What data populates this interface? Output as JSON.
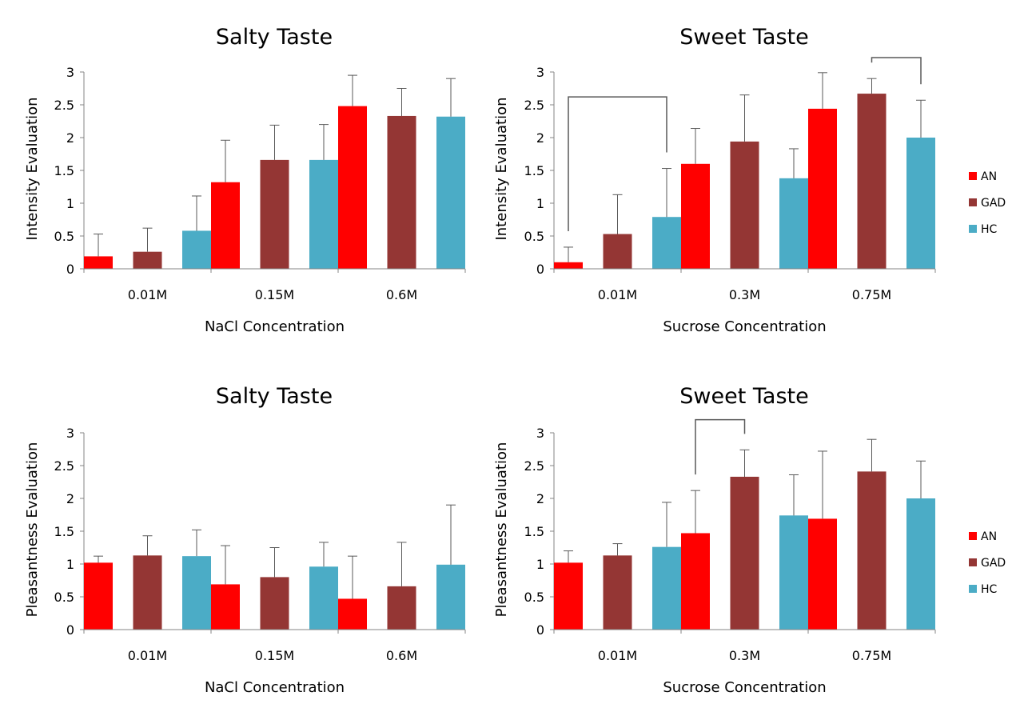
{
  "chart_data": [
    {
      "type": "bar",
      "title": "Salty Taste",
      "xlabel": "NaCl Concentration",
      "ylabel": "Intensity Evaluation",
      "ylim": [
        0,
        3
      ],
      "yticks": [
        "0",
        "0.5",
        "1",
        "1.5",
        "2",
        "2.5",
        "3"
      ],
      "categories": [
        "0.01M",
        "0.15M",
        "0.6M"
      ],
      "series": [
        {
          "name": "AN",
          "values": [
            0.19,
            1.32,
            2.48
          ],
          "errors": [
            0.34,
            0.64,
            0.47
          ]
        },
        {
          "name": "GAD",
          "values": [
            0.26,
            1.66,
            2.33
          ],
          "errors": [
            0.36,
            0.53,
            0.42
          ]
        },
        {
          "name": "HC",
          "values": [
            0.58,
            1.66,
            2.32
          ],
          "errors": [
            0.53,
            0.54,
            0.58
          ]
        }
      ],
      "brackets": [],
      "legend": false
    },
    {
      "type": "bar",
      "title": "Sweet Taste",
      "xlabel": "Sucrose Concentration",
      "ylabel": "Intensity Evaluation",
      "ylim": [
        0,
        3
      ],
      "yticks": [
        "0",
        "0.5",
        "1",
        "1.5",
        "2",
        "2.5",
        "3"
      ],
      "categories": [
        "0.01M",
        "0.3M",
        "0.75M"
      ],
      "series": [
        {
          "name": "AN",
          "values": [
            0.1,
            1.6,
            2.44
          ],
          "errors": [
            0.23,
            0.54,
            0.55
          ]
        },
        {
          "name": "GAD",
          "values": [
            0.53,
            1.94,
            2.67
          ],
          "errors": [
            0.6,
            0.71,
            0.23
          ]
        },
        {
          "name": "HC",
          "values": [
            0.79,
            1.38,
            2.0
          ],
          "errors": [
            0.74,
            0.45,
            0.57
          ]
        }
      ],
      "brackets": [
        {
          "from": [
            0,
            0
          ],
          "to": [
            0,
            2
          ],
          "top": 2.62
        },
        {
          "from": [
            2,
            1
          ],
          "to": [
            2,
            2
          ],
          "top": 3.22
        }
      ],
      "legend": true,
      "legend_position": "right"
    },
    {
      "type": "bar",
      "title": "Salty Taste",
      "xlabel": "NaCl Concentration",
      "ylabel": "Pleasantness Evaluation",
      "ylim": [
        0,
        3
      ],
      "yticks": [
        "0",
        "0.5",
        "1",
        "1.5",
        "2",
        "2.5",
        "3"
      ],
      "categories": [
        "0.01M",
        "0.15M",
        "0.6M"
      ],
      "series": [
        {
          "name": "AN",
          "values": [
            1.02,
            0.69,
            0.47
          ],
          "errors": [
            0.1,
            0.59,
            0.65
          ]
        },
        {
          "name": "GAD",
          "values": [
            1.13,
            0.8,
            0.66
          ],
          "errors": [
            0.3,
            0.45,
            0.67
          ]
        },
        {
          "name": "HC",
          "values": [
            1.12,
            0.96,
            0.99
          ],
          "errors": [
            0.4,
            0.37,
            0.91
          ]
        }
      ],
      "brackets": [],
      "legend": false
    },
    {
      "type": "bar",
      "title": "Sweet Taste",
      "xlabel": "Sucrose Concentration",
      "ylabel": "Pleasantness Evaluation",
      "ylim": [
        0,
        3
      ],
      "yticks": [
        "0",
        "0.5",
        "1",
        "1.5",
        "2",
        "2.5",
        "3"
      ],
      "categories": [
        "0.01M",
        "0.3M",
        "0.75M"
      ],
      "series": [
        {
          "name": "AN",
          "values": [
            1.02,
            1.47,
            1.69
          ],
          "errors": [
            0.18,
            0.65,
            1.03
          ]
        },
        {
          "name": "GAD",
          "values": [
            1.13,
            2.33,
            2.41
          ],
          "errors": [
            0.18,
            0.41,
            0.49
          ]
        },
        {
          "name": "HC",
          "values": [
            1.26,
            1.74,
            2.0
          ],
          "errors": [
            0.68,
            0.62,
            0.57
          ]
        }
      ],
      "brackets": [
        {
          "from": [
            1,
            0
          ],
          "to": [
            1,
            1
          ],
          "top": 3.2
        }
      ],
      "legend": true,
      "legend_position": "right"
    }
  ],
  "colors": {
    "AN": "#ff0000",
    "GAD": "#943634",
    "HC": "#4bacc6",
    "axis": "#868686",
    "bracket": "#595959",
    "errorbar": "#595959"
  }
}
